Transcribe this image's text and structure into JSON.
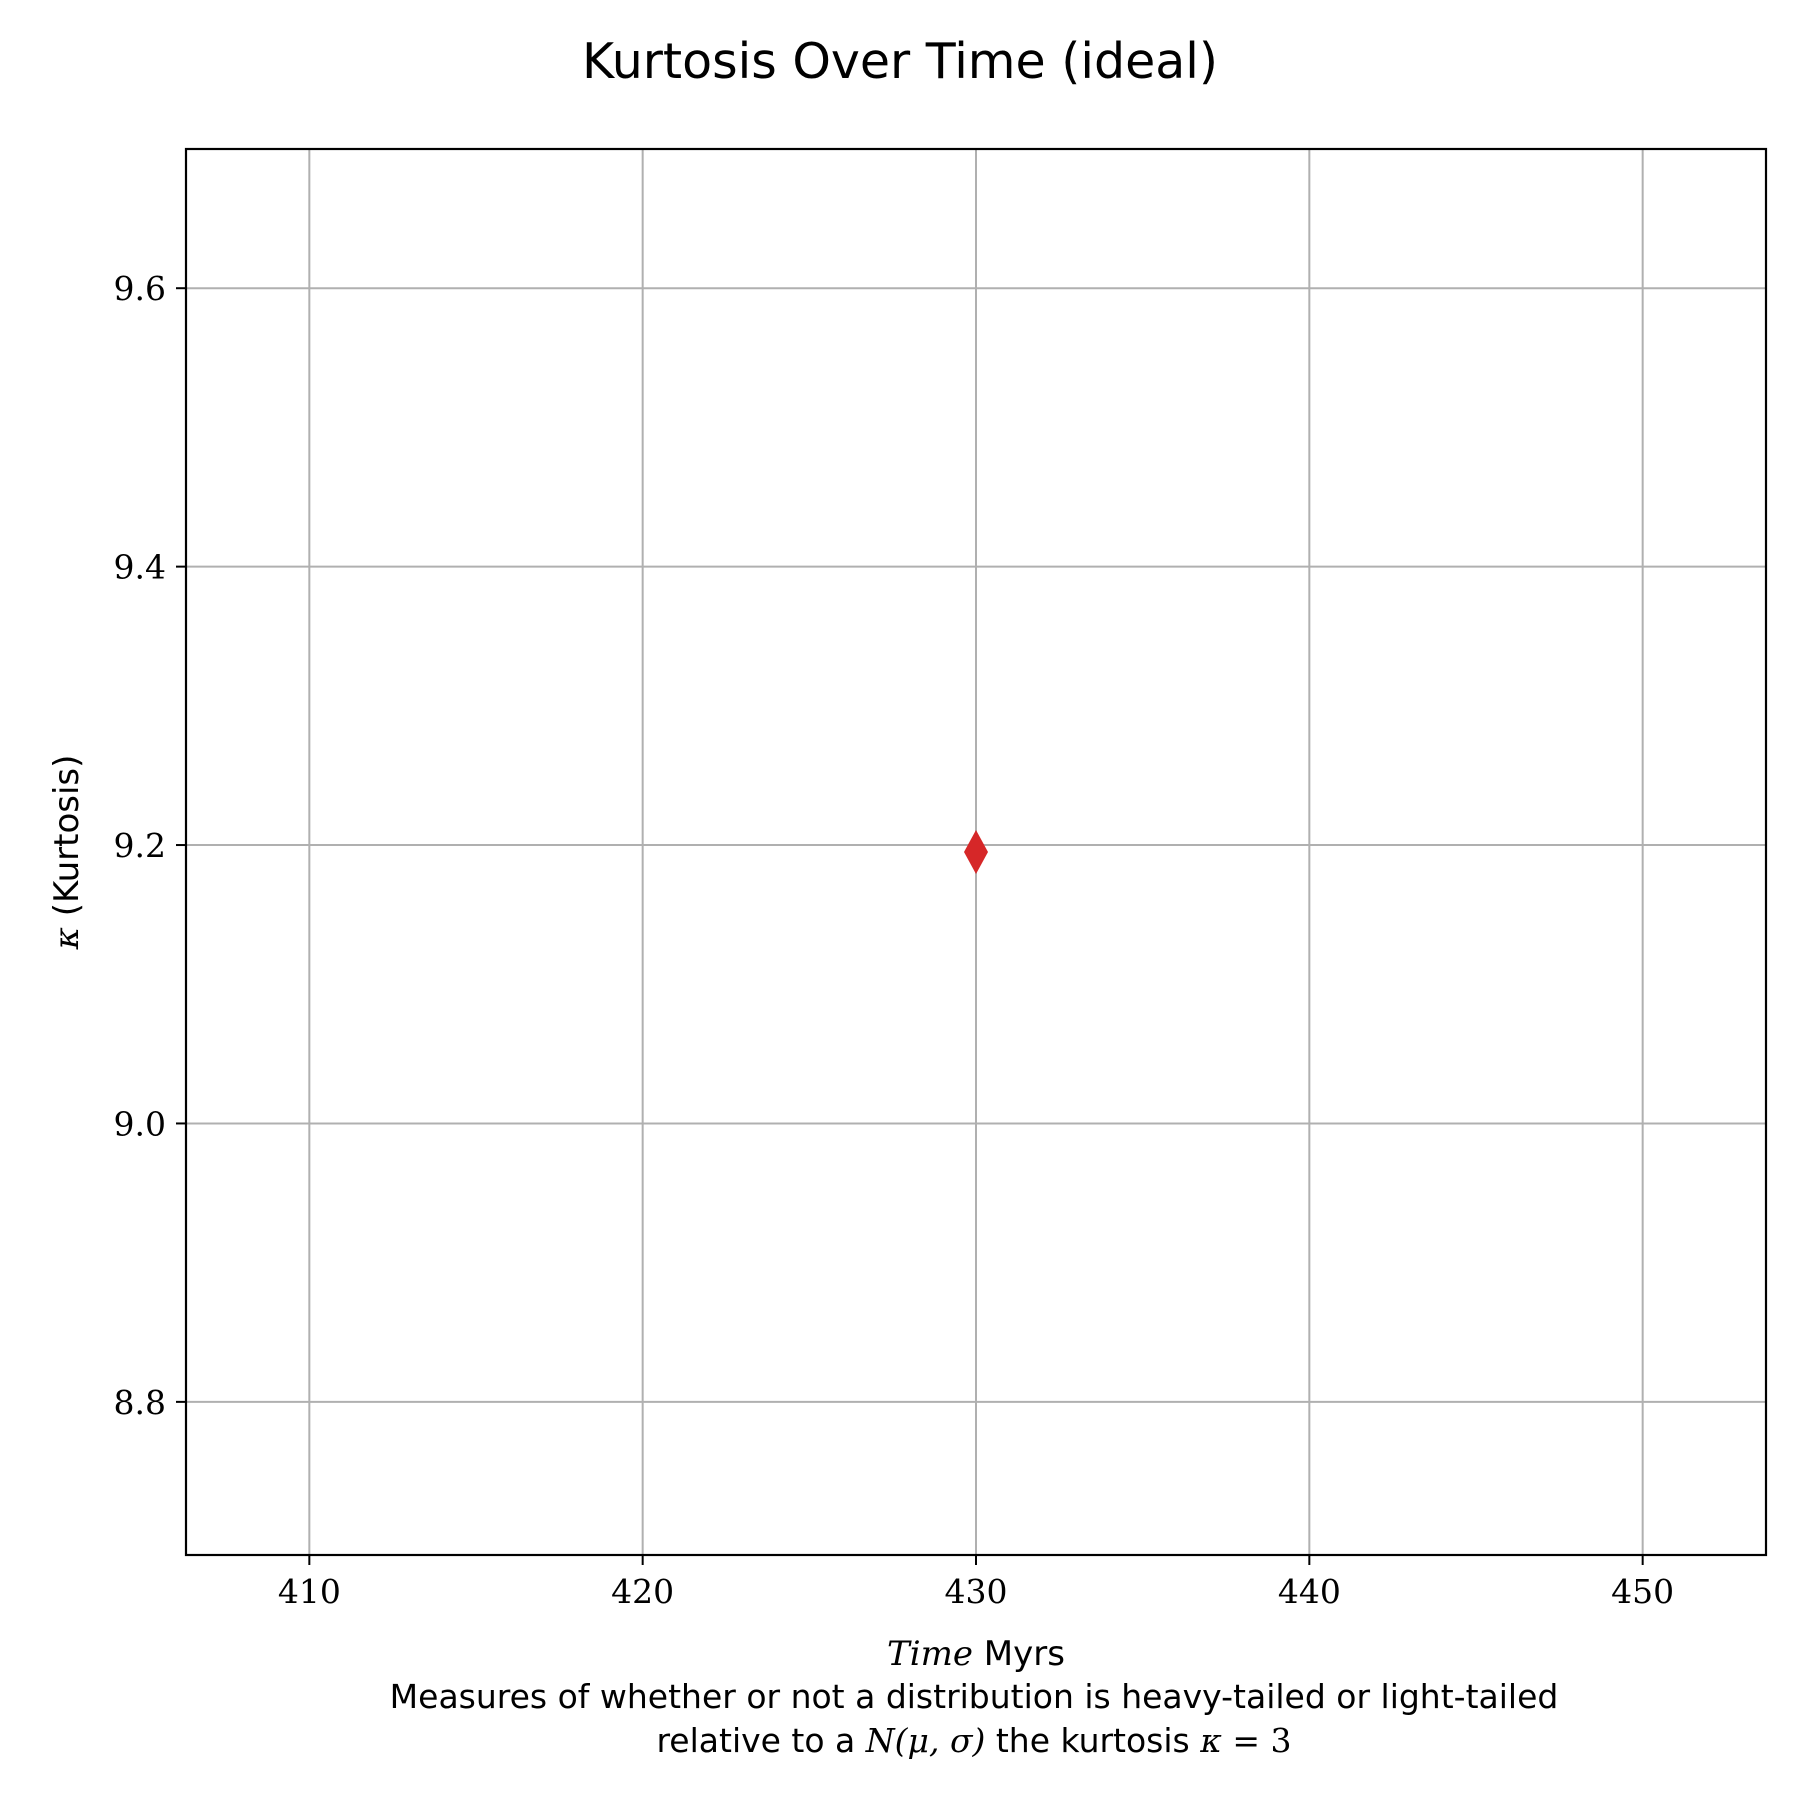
{
  "chart_data": {
    "type": "scatter",
    "title": "Kurtosis Over Time (ideal)",
    "xlabel_math": "Time",
    "xlabel_unit": " Myrs",
    "ylabel_symbol": "κ",
    "ylabel_text": " (Kurtosis)",
    "caption_line1": "Measures of whether or not a distribution is heavy-tailed or light-tailed",
    "caption_line2_pre": "relative to a ",
    "caption_line2_math1": "N",
    "caption_line2_math2": "(μ, σ)",
    "caption_line2_mid": " the kurtosis ",
    "caption_line2_math3": "κ",
    "caption_line2_eq": " = 3",
    "xlim": [
      406.3,
      453.7
    ],
    "ylim": [
      8.69,
      9.7
    ],
    "xticks": [
      410,
      420,
      430,
      440,
      450
    ],
    "xtick_labels": [
      "410",
      "420",
      "430",
      "440",
      "450"
    ],
    "yticks": [
      8.8,
      9.0,
      9.2,
      9.4,
      9.6
    ],
    "ytick_labels": [
      "8.8",
      "9.0",
      "9.2",
      "9.4",
      "9.6"
    ],
    "grid": true,
    "marker": "diamond",
    "color": "#d62728",
    "x": [
      430
    ],
    "y": [
      9.195
    ]
  }
}
